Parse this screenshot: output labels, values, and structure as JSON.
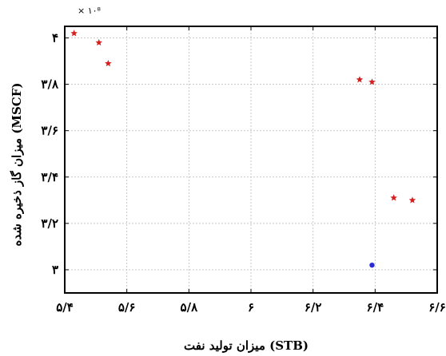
{
  "chart_data": {
    "type": "scatter",
    "title": "",
    "xlabel": "میزان تولید نفت (STB)",
    "ylabel": "میزان گاز ذخیره شده (MSCF)",
    "y_multiplier_label": "× ۱۰⁸",
    "xlim": [
      5.4,
      6.6
    ],
    "ylim": [
      2.9,
      4.05
    ],
    "grid": true,
    "x_ticks": [
      5.4,
      5.6,
      5.8,
      6.0,
      6.2,
      6.4,
      6.6
    ],
    "x_tick_labels": [
      "۵/۴",
      "۵/۶",
      "۵/۸",
      "۶",
      "۶/۲",
      "۶/۴",
      "۶/۶"
    ],
    "y_ticks": [
      3.0,
      3.2,
      3.4,
      3.6,
      3.8,
      4.0
    ],
    "y_tick_labels": [
      "۳",
      "۳/۲",
      "۳/۴",
      "۳/۶",
      "۳/۸",
      "۴"
    ],
    "series": [
      {
        "marker": "star",
        "color": "#d62020",
        "points": [
          [
            5.43,
            4.02
          ],
          [
            5.51,
            3.98
          ],
          [
            5.54,
            3.89
          ],
          [
            6.35,
            3.82
          ],
          [
            6.39,
            3.81
          ],
          [
            6.46,
            3.31
          ],
          [
            6.52,
            3.3
          ]
        ]
      },
      {
        "marker": "dot",
        "color": "#2a2ad6",
        "points": [
          [
            6.39,
            3.02
          ]
        ]
      }
    ]
  }
}
